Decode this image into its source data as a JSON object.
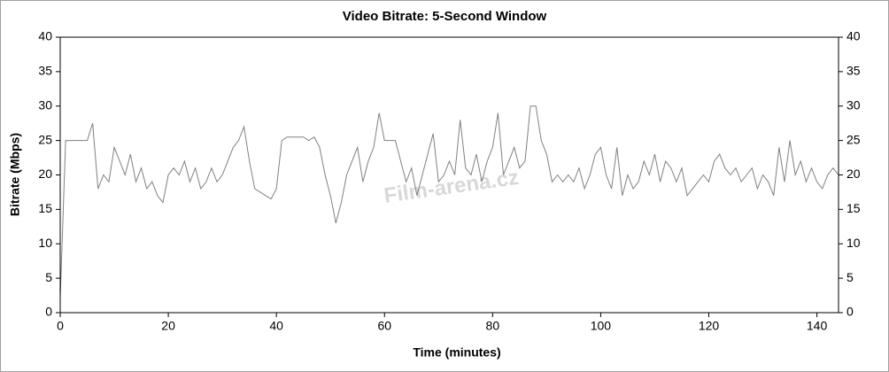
{
  "chart_data": {
    "type": "line",
    "title": "Video Bitrate: 5-Second Window",
    "x_label": "Time (minutes)",
    "y_label": "Bitrate (Mbps)",
    "watermark": "Film-arena.cz",
    "color": "#808080",
    "x": [
      0,
      1,
      2,
      3,
      4,
      5,
      6,
      7,
      8,
      9,
      10,
      11,
      12,
      13,
      14,
      15,
      16,
      17,
      18,
      19,
      20,
      21,
      22,
      23,
      24,
      25,
      26,
      27,
      28,
      29,
      30,
      31,
      32,
      33,
      34,
      35,
      36,
      37,
      38,
      39,
      40,
      41,
      42,
      43,
      44,
      45,
      46,
      47,
      48,
      49,
      50,
      51,
      52,
      53,
      54,
      55,
      56,
      57,
      58,
      59,
      60,
      61,
      62,
      63,
      64,
      65,
      66,
      67,
      68,
      69,
      70,
      71,
      72,
      73,
      74,
      75,
      76,
      77,
      78,
      79,
      80,
      81,
      82,
      83,
      84,
      85,
      86,
      87,
      88,
      89,
      90,
      91,
      92,
      93,
      94,
      95,
      96,
      97,
      98,
      99,
      100,
      101,
      102,
      103,
      104,
      105,
      106,
      107,
      108,
      109,
      110,
      111,
      112,
      113,
      114,
      115,
      116,
      117,
      118,
      119,
      120,
      121,
      122,
      123,
      124,
      125,
      126,
      127,
      128,
      129,
      130,
      131,
      132,
      133,
      134,
      135,
      136,
      137,
      138,
      139,
      140,
      141,
      142,
      143,
      144
    ],
    "values": [
      2,
      25,
      25,
      25,
      25,
      25,
      27.5,
      18,
      20,
      19,
      24,
      22,
      20,
      23,
      19,
      21,
      18,
      19,
      17,
      16,
      20,
      21,
      20,
      22,
      19,
      21,
      18,
      19,
      21,
      19,
      20,
      22,
      24,
      25,
      27,
      22,
      18,
      17.5,
      17,
      16.5,
      18,
      25,
      25.5,
      25.5,
      25.5,
      25.5,
      25,
      25.5,
      24,
      20,
      17,
      13,
      16,
      20,
      22,
      24,
      19,
      22,
      24,
      29,
      25,
      25,
      25,
      22,
      19,
      21,
      17,
      20,
      23,
      26,
      19,
      20,
      22,
      20,
      28,
      21,
      20,
      23,
      19,
      22,
      24,
      29,
      20,
      22,
      24,
      21,
      22,
      30,
      30,
      25,
      23,
      19,
      20,
      19,
      20,
      19,
      21,
      18,
      20,
      23,
      24,
      20,
      18,
      24,
      17,
      20,
      18,
      19,
      22,
      20,
      23,
      19,
      22,
      21,
      19,
      21,
      17,
      18,
      19,
      20,
      19,
      22,
      23,
      21,
      20,
      21,
      19,
      20,
      21,
      18,
      20,
      19,
      17,
      24,
      19,
      25,
      20,
      22,
      19,
      21,
      19,
      18,
      20,
      21,
      20
    ],
    "xlim": [
      0,
      144
    ],
    "xticks": [
      0,
      20,
      40,
      60,
      80,
      100,
      120,
      140
    ],
    "ylim": [
      0,
      40
    ],
    "yticks": [
      0,
      5,
      10,
      15,
      20,
      25,
      30,
      35,
      40
    ],
    "y2lim": [
      0,
      40
    ],
    "y2ticks": [
      0,
      5,
      10,
      15,
      20,
      25,
      30,
      35,
      40
    ],
    "grid": false
  }
}
